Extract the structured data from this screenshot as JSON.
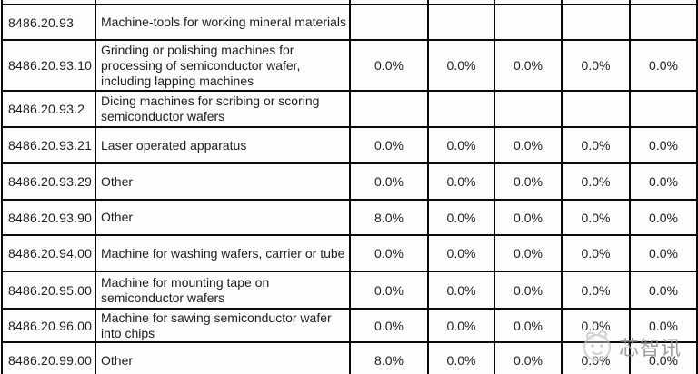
{
  "table": {
    "column_kinds": [
      "code",
      "description",
      "rate-1",
      "rate-2",
      "rate-3",
      "rate-4",
      "rate-5"
    ],
    "rows": [
      {
        "code": "8486.20.93",
        "description": "Machine-tools for working mineral materials",
        "values": [
          "",
          "",
          "",
          "",
          ""
        ]
      },
      {
        "code": "8486.20.93.10",
        "description": "Grinding or polishing machines for processing of semiconductor wafer, including lapping machines",
        "values": [
          "0.0%",
          "0.0%",
          "0.0%",
          "0.0%",
          "0.0%"
        ]
      },
      {
        "code": "8486.20.93.2",
        "description": "Dicing machines for scribing or scoring semiconductor wafers",
        "values": [
          "",
          "",
          "",
          "",
          ""
        ]
      },
      {
        "code": "8486.20.93.21",
        "description": "Laser operated apparatus",
        "values": [
          "0.0%",
          "0.0%",
          "0.0%",
          "0.0%",
          "0.0%"
        ]
      },
      {
        "code": "8486.20.93.29",
        "description": "Other",
        "values": [
          "0.0%",
          "0.0%",
          "0.0%",
          "0.0%",
          "0.0%"
        ]
      },
      {
        "code": "8486.20.93.90",
        "description": "Other",
        "values": [
          "8.0%",
          "0.0%",
          "0.0%",
          "0.0%",
          "0.0%"
        ]
      },
      {
        "code": "8486.20.94.00",
        "description": "Machine for washing wafers, carrier or tube",
        "values": [
          "0.0%",
          "0.0%",
          "0.0%",
          "0.0%",
          "0.0%"
        ]
      },
      {
        "code": "8486.20.95.00",
        "description": "Machine for mounting tape on semiconductor wafers",
        "values": [
          "0.0%",
          "0.0%",
          "0.0%",
          "0.0%",
          "0.0%"
        ]
      },
      {
        "code": "8486.20.96.00",
        "description": "Machine for sawing semiconductor wafer into chips",
        "values": [
          "0.0%",
          "0.0%",
          "0.0%",
          "0.0%",
          "0.0%"
        ]
      },
      {
        "code": "8486.20.99.00",
        "description": "Other",
        "values": [
          "8.0%",
          "0.0%",
          "0.0%",
          "0.0%",
          "0.0%"
        ]
      }
    ]
  },
  "watermark": {
    "text": "芯智讯",
    "logo": "xinzhixun-mascot-logo"
  },
  "colors": {
    "border": "#0a0a0a",
    "text": "#1d1d1d",
    "watermark_gray": "#8e8e8e",
    "background": "#fdfdfd"
  }
}
